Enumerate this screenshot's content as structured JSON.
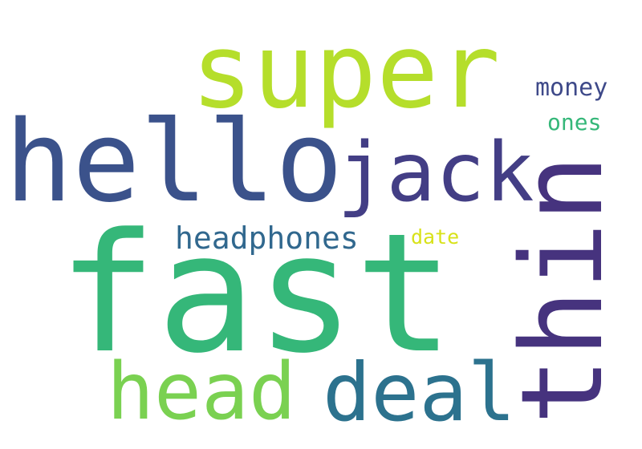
{
  "word_cloud": {
    "words": [
      {
        "text": "super",
        "color": "#b5de2b"
      },
      {
        "text": "hello",
        "color": "#3b528b"
      },
      {
        "text": "jack",
        "color": "#433e85"
      },
      {
        "text": "money",
        "color": "#3e4989"
      },
      {
        "text": "ones",
        "color": "#35b779"
      },
      {
        "text": "thin",
        "color": "#46337e"
      },
      {
        "text": "headphones",
        "color": "#31688e"
      },
      {
        "text": "date",
        "color": "#d8e219"
      },
      {
        "text": "fast",
        "color": "#35b779"
      },
      {
        "text": "head",
        "color": "#7ad151"
      },
      {
        "text": "deal",
        "color": "#2c728e"
      }
    ]
  }
}
